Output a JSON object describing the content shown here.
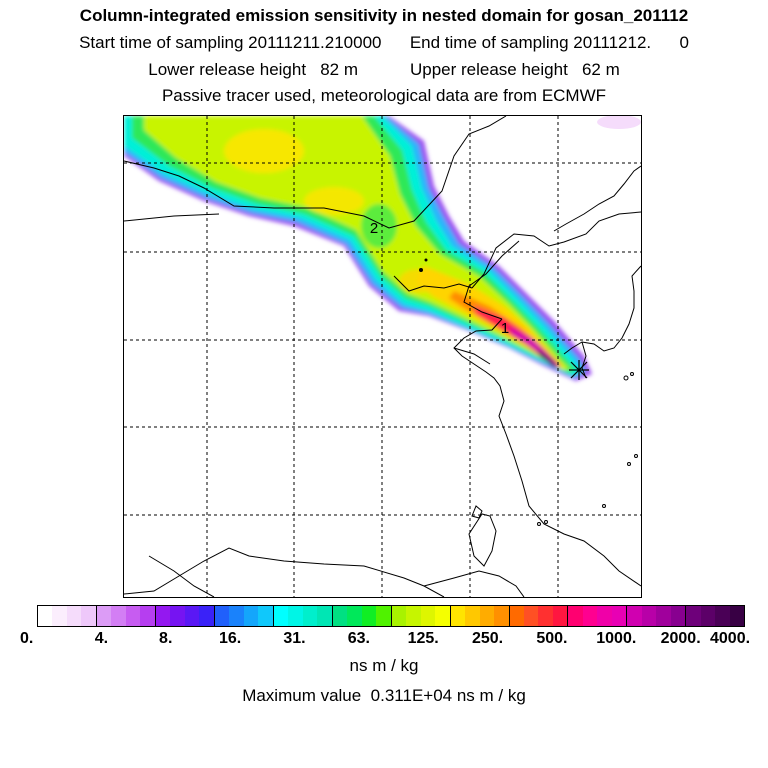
{
  "header": {
    "title": "Column-integrated emission sensitivity in nested domain for gosan_201112",
    "line2": "Start time of sampling 20111211.210000      End time of sampling 20111212.      0",
    "line3": "Lower release height   82 m           Upper release height   62 m",
    "line4": "Passive tracer used, meteorological data are from ECMWF"
  },
  "map": {
    "labels": [
      {
        "text": "2"
      },
      {
        "text": "1"
      }
    ],
    "release_marker": "asterisk-marker"
  },
  "colorbar": {
    "colors": [
      "#ffffff",
      "#fbeefd",
      "#f5dcfb",
      "#eec8fa",
      "#dc9cf6",
      "#d37ef4",
      "#c75cf1",
      "#b63ef0",
      "#9418f0",
      "#7614f2",
      "#5a18f5",
      "#3a22f8",
      "#2060fb",
      "#1a82fb",
      "#14a6fb",
      "#10c8fb",
      "#00ffff",
      "#00f5e6",
      "#00efcc",
      "#00e6b4",
      "#00e082",
      "#00e85a",
      "#10ee24",
      "#50f200",
      "#a8f200",
      "#c6f500",
      "#def600",
      "#f5ff00",
      "#ffe400",
      "#ffc800",
      "#ffac00",
      "#ff9000",
      "#ff6a00",
      "#ff5024",
      "#ff3030",
      "#ff1640",
      "#ff0070",
      "#ff0090",
      "#f000a8",
      "#e800b4",
      "#d000b0",
      "#b800a8",
      "#a0009c",
      "#880090",
      "#6e007a",
      "#5c0068",
      "#4a0056",
      "#380044"
    ],
    "tick_labels": [
      "0.",
      "4.",
      "8.",
      "16.",
      "31.",
      "63.",
      "125.",
      "250.",
      "500.",
      "1000.",
      "2000.",
      "4000."
    ],
    "units": "ns m / kg",
    "max_label": "Maximum value  0.311E+04 ns m / kg"
  }
}
